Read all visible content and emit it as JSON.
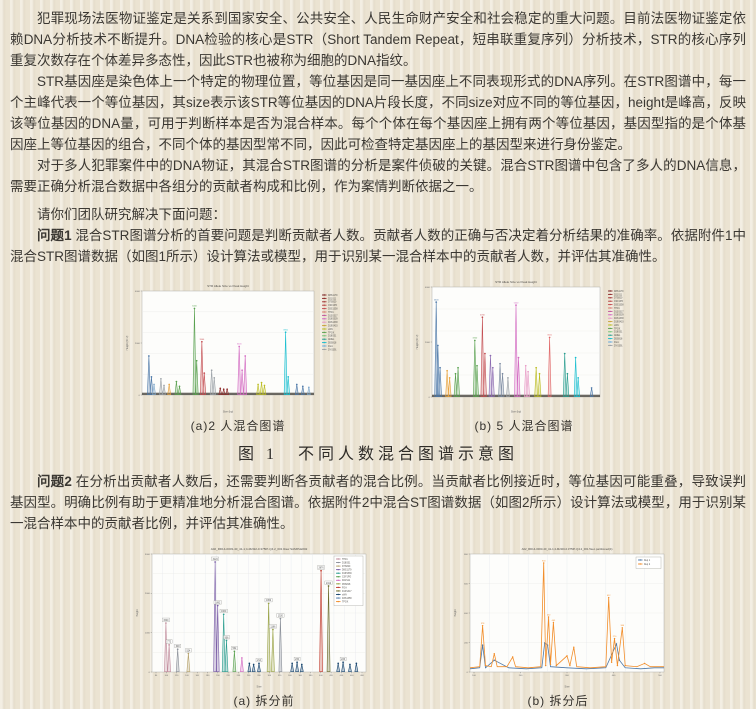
{
  "colors": {
    "page_bg": "#ebe3d2",
    "text": "#3b3833"
  },
  "doc": {
    "p1": "犯罪现场法医物证鉴定是关系到国家安全、公共安全、人民生命财产安全和社会稳定的重大问题。目前法医物证鉴定依赖DNA分析技术不断提升。DNA检验的核心是STR（Short Tandem Repeat，短串联重复序列）分析技术，STR的核心序列重复次数存在个体差异多态性，因此STR也被称为细胞的DNA指纹。",
    "p2": "STR基因座是染色体上一个特定的物理位置，等位基因是同一基因座上不同表现形式的DNA序列。在STR图谱中，每一个主峰代表一个等位基因，其size表示该STR等位基因的DNA片段长度，不同size对应不同的等位基因，height是峰高，反映该等位基因的DNA量，可用于判断样本是否为混合样本。每个个体在每个基因座上拥有两个等位基因，基因型指的是个体基因座上等位基因的组合，不同个体的基因型常不同，因此可检查特定基因座上的基因型来进行身份鉴定。",
    "p3": "对于多人犯罪案件中的DNA物证，其混合STR图谱的分析是案件侦破的关键。混合STR图谱中包含了多人的DNA信息，需要正确分析混合数据中各组分的贡献者构成和比例，作为案情判断依据之一。",
    "p4": "请你们团队研究解决下面问题：",
    "problem1": {
      "label": "问题1",
      "text": " 混合STR图谱分析的首要问题是判断贡献者人数。贡献者人数的正确与否决定着分析结果的准确率。依据附件1中混合STR图谱数据（如图1所示）设计算法或模型，用于识别某一混合样本中的贡献者人数，并评估其准确性。"
    },
    "problem2": {
      "label": "问题2",
      "text": " 在分析出贡献者人数后，还需要判断各贡献者的混合比例。当贡献者比例接近时，等位基因可能重叠，导致误判基因型。明确比例有助于更精准地分析混合图谱。依据附件2中混合ST图谱数据（如图2所示）设计算法或模型，用于识别某一混合样本中的贡献者比例，并评估其准确性。"
    },
    "fig1": {
      "caption_a": "(a)2 人混合图谱",
      "caption_b": "(b) 5 人混合图谱",
      "caption": "图 1　不同人数混合图谱示意图"
    },
    "fig2": {
      "caption_a": "(a) 拆分前",
      "caption_b": "(b) 拆分后"
    }
  },
  "chart_data": [
    {
      "id": "fig1a",
      "type": "line",
      "title": "STR Allele Size vs Peak Height",
      "xlabel": "Size (bp)",
      "ylabel": "Height (RFU)",
      "ylim": [
        0,
        6000
      ],
      "yticks": [
        "0",
        "2000",
        "4000"
      ],
      "grid_y": 5,
      "dense_baseline": true,
      "label_min": 0.45,
      "ymax": 6000,
      "legend": [
        [
          "#7a1f1f",
          "D8S1179"
        ],
        [
          "#8e2a2a",
          "D21S11"
        ],
        [
          "#a33333",
          "D7S820"
        ],
        [
          "#b84444",
          "CSF1PO"
        ],
        [
          "#c44e52",
          "D3S1358"
        ],
        [
          "#d9776b",
          "TH01"
        ],
        [
          "#c2559c",
          "D13S317"
        ],
        [
          "#d36ac2",
          "D16S539"
        ],
        [
          "#e89bc6",
          "D2S1338"
        ],
        [
          "#caa23a",
          "D19S433"
        ],
        [
          "#bcbd22",
          "vWA"
        ],
        [
          "#59a14f",
          "TPOX"
        ],
        [
          "#74c476",
          "D18S51"
        ],
        [
          "#2a9d8f",
          "AMEL"
        ],
        [
          "#17becf",
          "D5S818"
        ],
        [
          "#66aadd",
          "FGA"
        ],
        [
          "#9aa0a6",
          "DYS391"
        ]
      ],
      "peaks": [
        [
          0.04,
          0.4,
          "#4c78a8",
          "2400"
        ],
        [
          0.055,
          0.18,
          "#4c78a8"
        ],
        [
          0.07,
          0.1,
          "#7fa8cc"
        ],
        [
          0.11,
          0.16,
          "#9aa0a6"
        ],
        [
          0.128,
          0.09,
          "#9aa0a6"
        ],
        [
          0.158,
          0.1,
          "#e8a33d"
        ],
        [
          0.2,
          0.13,
          "#59a14f"
        ],
        [
          0.218,
          0.08,
          "#59a14f"
        ],
        [
          0.305,
          0.9,
          "#59a14f",
          "5400"
        ],
        [
          0.318,
          0.35,
          "#59a14f"
        ],
        [
          0.348,
          0.55,
          "#c44e52",
          "3300"
        ],
        [
          0.362,
          0.22,
          "#c44e52"
        ],
        [
          0.405,
          0.25,
          "#9aa0a6"
        ],
        [
          0.42,
          0.17,
          "#9aa0a6"
        ],
        [
          0.455,
          0.06,
          "#8e2a2a"
        ],
        [
          0.475,
          0.05,
          "#8e2a2a"
        ],
        [
          0.495,
          0.05,
          "#8e2a2a"
        ],
        [
          0.565,
          0.5,
          "#d36ac2",
          "3000"
        ],
        [
          0.582,
          0.25,
          "#d36ac2"
        ],
        [
          0.6,
          0.4,
          "#d36ac2"
        ],
        [
          0.675,
          0.1,
          "#bcbd22"
        ],
        [
          0.695,
          0.12,
          "#bcbd22"
        ],
        [
          0.712,
          0.09,
          "#bcbd22"
        ],
        [
          0.835,
          0.65,
          "#17becf",
          "3900"
        ],
        [
          0.85,
          0.18,
          "#17becf"
        ],
        [
          0.9,
          0.1,
          "#4c78a8"
        ],
        [
          0.935,
          0.08,
          "#4c78a8"
        ],
        [
          0.97,
          0.07,
          "#7fa8cc"
        ]
      ]
    },
    {
      "id": "fig1b",
      "type": "line",
      "title": "STR Allele Size vs Peak Height",
      "xlabel": "Size (bp)",
      "ylabel": "Height (RFU)",
      "ylim": [
        0,
        6000
      ],
      "yticks": [
        "0",
        "2000",
        "4000"
      ],
      "grid_y": 5,
      "dense_baseline": true,
      "label_min": 0.45,
      "ymax": 6000,
      "legend": [
        [
          "#7a1f1f",
          "D8S1179"
        ],
        [
          "#8e2a2a",
          "D21S11"
        ],
        [
          "#a33333",
          "D7S820"
        ],
        [
          "#b84444",
          "CSF1PO"
        ],
        [
          "#c44e52",
          "D3S1358"
        ],
        [
          "#d9776b",
          "TH01"
        ],
        [
          "#c2559c",
          "D13S317"
        ],
        [
          "#d36ac2",
          "D16S539"
        ],
        [
          "#e89bc6",
          "D2S1338"
        ],
        [
          "#caa23a",
          "D19S433"
        ],
        [
          "#bcbd22",
          "vWA"
        ],
        [
          "#59a14f",
          "TPOX"
        ],
        [
          "#74c476",
          "D18S51"
        ],
        [
          "#2a9d8f",
          "AMEL"
        ],
        [
          "#17becf",
          "D5S818"
        ],
        [
          "#66aadd",
          "FGA"
        ],
        [
          "#9aa0a6",
          "DYS391"
        ]
      ],
      "peaks": [
        [
          0.025,
          0.93,
          "#4c78a8",
          "5600"
        ],
        [
          0.035,
          0.5,
          "#4c78a8"
        ],
        [
          0.048,
          0.28,
          "#4c78a8"
        ],
        [
          0.09,
          0.25,
          "#e8a33d"
        ],
        [
          0.105,
          0.18,
          "#e8a33d"
        ],
        [
          0.14,
          0.22,
          "#59a14f"
        ],
        [
          0.155,
          0.28,
          "#59a14f"
        ],
        [
          0.255,
          0.55,
          "#59a14f",
          "3300"
        ],
        [
          0.268,
          0.3,
          "#59a14f"
        ],
        [
          0.3,
          0.78,
          "#c44e52",
          "4700"
        ],
        [
          0.315,
          0.42,
          "#c44e52"
        ],
        [
          0.348,
          0.4,
          "#8c6bb1"
        ],
        [
          0.362,
          0.28,
          "#8c6bb1"
        ],
        [
          0.405,
          0.32,
          "#7b8aa0"
        ],
        [
          0.42,
          0.22,
          "#7b8aa0"
        ],
        [
          0.452,
          0.18,
          "#9aa0a6"
        ],
        [
          0.5,
          0.9,
          "#d36ac2",
          "5400"
        ],
        [
          0.515,
          0.38,
          "#d36ac2"
        ],
        [
          0.558,
          0.3,
          "#e89bc6"
        ],
        [
          0.572,
          0.24,
          "#e89bc6"
        ],
        [
          0.62,
          0.28,
          "#bcbd22"
        ],
        [
          0.64,
          0.22,
          "#bcbd22"
        ],
        [
          0.7,
          0.58,
          "#e06666",
          "3500"
        ],
        [
          0.79,
          0.42,
          "#2a9d8f"
        ],
        [
          0.806,
          0.22,
          "#2a9d8f"
        ],
        [
          0.855,
          0.38,
          "#17becf"
        ],
        [
          0.87,
          0.18,
          "#17becf"
        ],
        [
          0.95,
          0.08,
          "#4c78a8"
        ]
      ]
    },
    {
      "id": "fig2a",
      "type": "line",
      "title": "A02_RD14-0003-40_41-1;4-M2I22-0.375IP-Q4.2_001 Raw SAMPLE#02",
      "xlabel": "Size",
      "ylabel": "Height",
      "ylim": [
        0,
        3200
      ],
      "yticks": [
        "0",
        "1000",
        "2000",
        "3000"
      ],
      "xticks": [
        "80",
        "100",
        "120",
        "140",
        "160",
        "180",
        "200",
        "220",
        "240",
        "260",
        "280",
        "300",
        "320",
        "340",
        "360",
        "380",
        "400",
        "420",
        "440",
        "460",
        "480"
      ],
      "grid_x": 20,
      "grid_y": 6,
      "boxed_labels": true,
      "legend": [
        [
          "#c08a9b",
          "TH01"
        ],
        [
          "#8a8f98",
          "D18S51"
        ],
        [
          "#b5a16b",
          "D7S820"
        ],
        [
          "#7b5ea7",
          "D8S1179"
        ],
        [
          "#2a9d8f",
          "D16S539"
        ],
        [
          "#59a14f",
          "CSF1PO"
        ],
        [
          "#d36ac2",
          "D21S11"
        ],
        [
          "#9aa345",
          "D5S818"
        ],
        [
          "#c0392b",
          "FGA"
        ],
        [
          "#6b6b2a",
          "D13S317"
        ],
        [
          "#17456e",
          "vWA"
        ],
        [
          "#4c78a8",
          "D3S1358"
        ],
        [
          "#f28e2b",
          "TPOX"
        ]
      ],
      "peaks": [
        [
          0.065,
          0.44,
          "#c08a9b",
          "1540"
        ],
        [
          0.08,
          0.24,
          "#c08a9b",
          "772"
        ],
        [
          0.12,
          0.2,
          "#8a8f98",
          "648"
        ],
        [
          0.17,
          0.16,
          "#b5a16b",
          "524"
        ],
        [
          0.295,
          1.0,
          "#7b5ea7",
          "3124"
        ],
        [
          0.307,
          0.6,
          "#7b5ea7",
          "1892"
        ],
        [
          0.335,
          0.52,
          "#2a9d8f",
          "1660"
        ],
        [
          0.348,
          0.28,
          "#2a9d8f",
          "906"
        ],
        [
          0.385,
          0.18,
          "#59a14f",
          "562"
        ],
        [
          0.42,
          0.12,
          "#d36ac2"
        ],
        [
          0.455,
          0.07,
          "#17456e"
        ],
        [
          0.475,
          0.06,
          "#17456e"
        ],
        [
          0.5,
          0.07,
          "#17456e",
          "214"
        ],
        [
          0.545,
          0.62,
          "#9aa345",
          "1952"
        ],
        [
          0.565,
          0.38,
          "#9aa345",
          "1186"
        ],
        [
          0.6,
          0.48,
          "#8a8f98",
          "1520"
        ],
        [
          0.655,
          0.07,
          "#17456e"
        ],
        [
          0.678,
          0.08,
          "#17456e",
          "230"
        ],
        [
          0.7,
          0.06,
          "#17456e"
        ],
        [
          0.79,
          0.92,
          "#c0392b",
          "2876"
        ],
        [
          0.825,
          0.78,
          "#6b6b2a",
          "2412"
        ],
        [
          0.87,
          0.07,
          "#17456e"
        ],
        [
          0.893,
          0.08,
          "#17456e",
          "226"
        ],
        [
          0.925,
          0.06,
          "#17456e"
        ],
        [
          0.955,
          0.07,
          "#17456e"
        ]
      ]
    },
    {
      "id": "fig2b",
      "type": "line",
      "title": "A02_RD14-0003-40_41-1;4-M2I20-0.375IP-Q4.2_001.5sec.partitioned(4)",
      "xlabel": "Size",
      "ylabel": "Height",
      "ylim": [
        0,
        900
      ],
      "ymax": 900,
      "label_min": 0.3,
      "yticks": [
        "0",
        "200",
        "400",
        "600",
        "800"
      ],
      "xticks": [
        "100",
        "200",
        "300",
        "400",
        "500"
      ],
      "grid_x": 10,
      "grid_y": 4,
      "legend": [
        [
          "#4c78a8",
          "Rep 1"
        ],
        [
          "#f28e2b",
          "Rep 2"
        ]
      ],
      "series": [
        {
          "name": "Rep 1",
          "color": "#4c78a8",
          "points": [
            [
              0,
              0.02
            ],
            [
              0.05,
              0.03
            ],
            [
              0.065,
              0.24
            ],
            [
              0.08,
              0.03
            ],
            [
              0.125,
              0.1
            ],
            [
              0.2,
              0.03
            ],
            [
              0.29,
              0.02
            ],
            [
              0.37,
              0.03
            ],
            [
              0.385,
              0.26
            ],
            [
              0.4,
              0.24
            ],
            [
              0.415,
              0.04
            ],
            [
              0.5,
              0.03
            ],
            [
              0.6,
              0.02
            ],
            [
              0.7,
              0.03
            ],
            [
              0.755,
              0.25
            ],
            [
              0.77,
              0.1
            ],
            [
              0.8,
              0.03
            ],
            [
              0.88,
              0.02
            ],
            [
              0.95,
              0.03
            ],
            [
              1.0,
              0.03
            ]
          ]
        },
        {
          "name": "Rep 2",
          "color": "#f28e2b",
          "points": [
            [
              0,
              0.03
            ],
            [
              0.05,
              0.04
            ],
            [
              0.065,
              0.42
            ],
            [
              0.08,
              0.05
            ],
            [
              0.11,
              0.04
            ],
            [
              0.125,
              0.16
            ],
            [
              0.14,
              0.04
            ],
            [
              0.19,
              0.04
            ],
            [
              0.22,
              0.13
            ],
            [
              0.235,
              0.04
            ],
            [
              0.3,
              0.03
            ],
            [
              0.365,
              0.04
            ],
            [
              0.38,
              1.0
            ],
            [
              0.39,
              0.05
            ],
            [
              0.405,
              0.5
            ],
            [
              0.415,
              0.06
            ],
            [
              0.43,
              0.45
            ],
            [
              0.445,
              0.05
            ],
            [
              0.5,
              0.14
            ],
            [
              0.515,
              0.05
            ],
            [
              0.535,
              0.22
            ],
            [
              0.55,
              0.04
            ],
            [
              0.62,
              0.03
            ],
            [
              0.7,
              0.04
            ],
            [
              0.715,
              0.68
            ],
            [
              0.73,
              0.08
            ],
            [
              0.745,
              0.3
            ],
            [
              0.76,
              0.05
            ],
            [
              0.785,
              0.4
            ],
            [
              0.8,
              0.05
            ],
            [
              0.86,
              0.04
            ],
            [
              0.9,
              0.07
            ],
            [
              0.93,
              0.04
            ],
            [
              1.0,
              0.04
            ]
          ]
        }
      ]
    }
  ]
}
